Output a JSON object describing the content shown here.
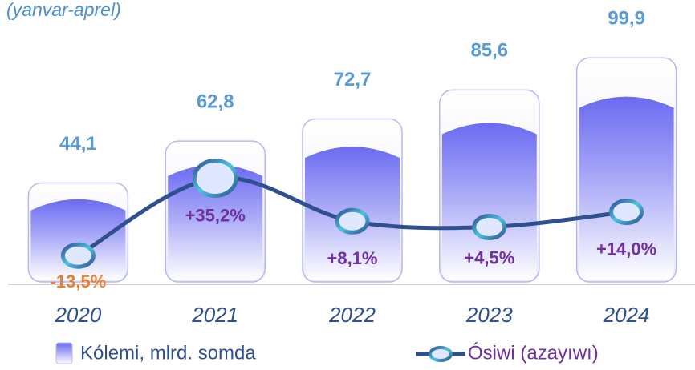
{
  "chart_data": {
    "type": "bar_line",
    "subtitle": "(yanvar-aprel)",
    "categories": [
      "2020",
      "2021",
      "2022",
      "2023",
      "2024"
    ],
    "series": [
      {
        "name": "Kólemi, mlrd. somda",
        "color": "#8080f0",
        "values": [
          44.1,
          62.8,
          72.7,
          85.6,
          99.9
        ],
        "value_labels": [
          "44,1",
          "62,8",
          "72,7",
          "85,6",
          "99,9"
        ],
        "label_color": "#5b9bd5"
      },
      {
        "name": "Ósiwi (azayıwı)",
        "color": "#2f4f8f",
        "axis": "y2",
        "values": [
          -13.5,
          35.2,
          8.1,
          4.5,
          14.0
        ],
        "value_labels": [
          "-13,5%",
          "+35,2%",
          "+8,1%",
          "+4,5%",
          "+14,0%"
        ],
        "label_colors": [
          "#ed7d31",
          "#7030a0",
          "#7030a0",
          "#7030a0",
          "#7030a0"
        ]
      }
    ],
    "ylim": [
      0,
      110
    ],
    "y2lim": [
      -30,
      125
    ]
  }
}
